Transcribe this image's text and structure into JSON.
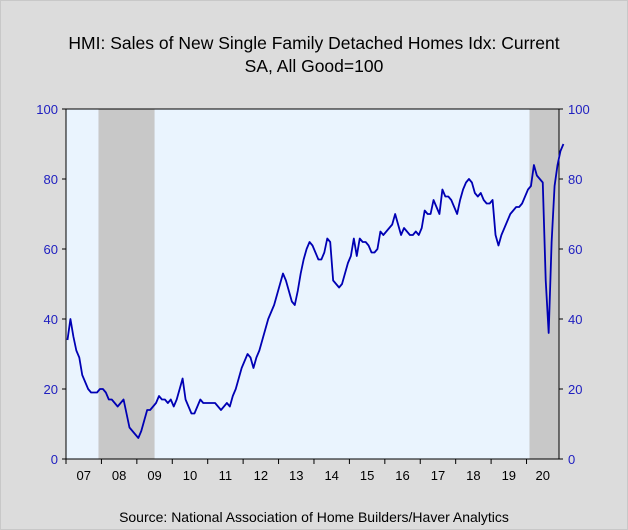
{
  "title_line1": "HMI: Sales of New Single Family Detached Homes Idx: Current",
  "title_line2": "SA, All Good=100",
  "source": "Source:  National Association of Home Builders/Haver Analytics",
  "colors": {
    "line": "#0000b4",
    "plot_bg": "#eaf4fe",
    "recession": "#c8c8c8",
    "axis_labels": "#2020c0"
  },
  "chart_data": {
    "type": "line",
    "title": "HMI: Sales of New Single Family Detached Homes Idx: Current SA, All Good=100",
    "ylim": [
      0,
      100
    ],
    "yticks": [
      0,
      20,
      40,
      60,
      80,
      100
    ],
    "xlim": [
      "2007-01",
      "2020-11"
    ],
    "xtick_labels": [
      "07",
      "08",
      "09",
      "10",
      "11",
      "12",
      "13",
      "14",
      "15",
      "16",
      "17",
      "18",
      "19",
      "20"
    ],
    "recessions": [
      [
        "2007-12",
        "2009-06"
      ],
      [
        "2020-02",
        "2020-11"
      ]
    ],
    "grid": false,
    "start": "2007-01",
    "series": [
      {
        "values": [
          34,
          40,
          35,
          31,
          29,
          24,
          22,
          20,
          19,
          19,
          19,
          20,
          20,
          19,
          17,
          17,
          16,
          15,
          16,
          17,
          13,
          9,
          8,
          7,
          6,
          8,
          11,
          14,
          14,
          15,
          16,
          18,
          17,
          17,
          16,
          17,
          15,
          17,
          20,
          23,
          17,
          15,
          13,
          13,
          15,
          17,
          16,
          16,
          16,
          16,
          16,
          15,
          14,
          15,
          16,
          15,
          18,
          20,
          23,
          26,
          28,
          30,
          29,
          26,
          29,
          31,
          34,
          37,
          40,
          42,
          44,
          47,
          50,
          53,
          51,
          48,
          45,
          44,
          48,
          53,
          57,
          60,
          62,
          61,
          59,
          57,
          57,
          59,
          63,
          62,
          51,
          50,
          49,
          50,
          53,
          56,
          58,
          63,
          58,
          63,
          62,
          62,
          61,
          59,
          59,
          60,
          65,
          64,
          65,
          66,
          67,
          70,
          67,
          64,
          66,
          65,
          64,
          64,
          65,
          64,
          66,
          71,
          70,
          70,
          74,
          72,
          70,
          77,
          75,
          75,
          74,
          72,
          70,
          74,
          77,
          79,
          80,
          79,
          76,
          75,
          76,
          74,
          73,
          73,
          74,
          64,
          61,
          64,
          66,
          68,
          70,
          71,
          72,
          72,
          73,
          75,
          77,
          78,
          84,
          81,
          80,
          79,
          51,
          36,
          62,
          78,
          84,
          88,
          90
        ]
      }
    ]
  }
}
